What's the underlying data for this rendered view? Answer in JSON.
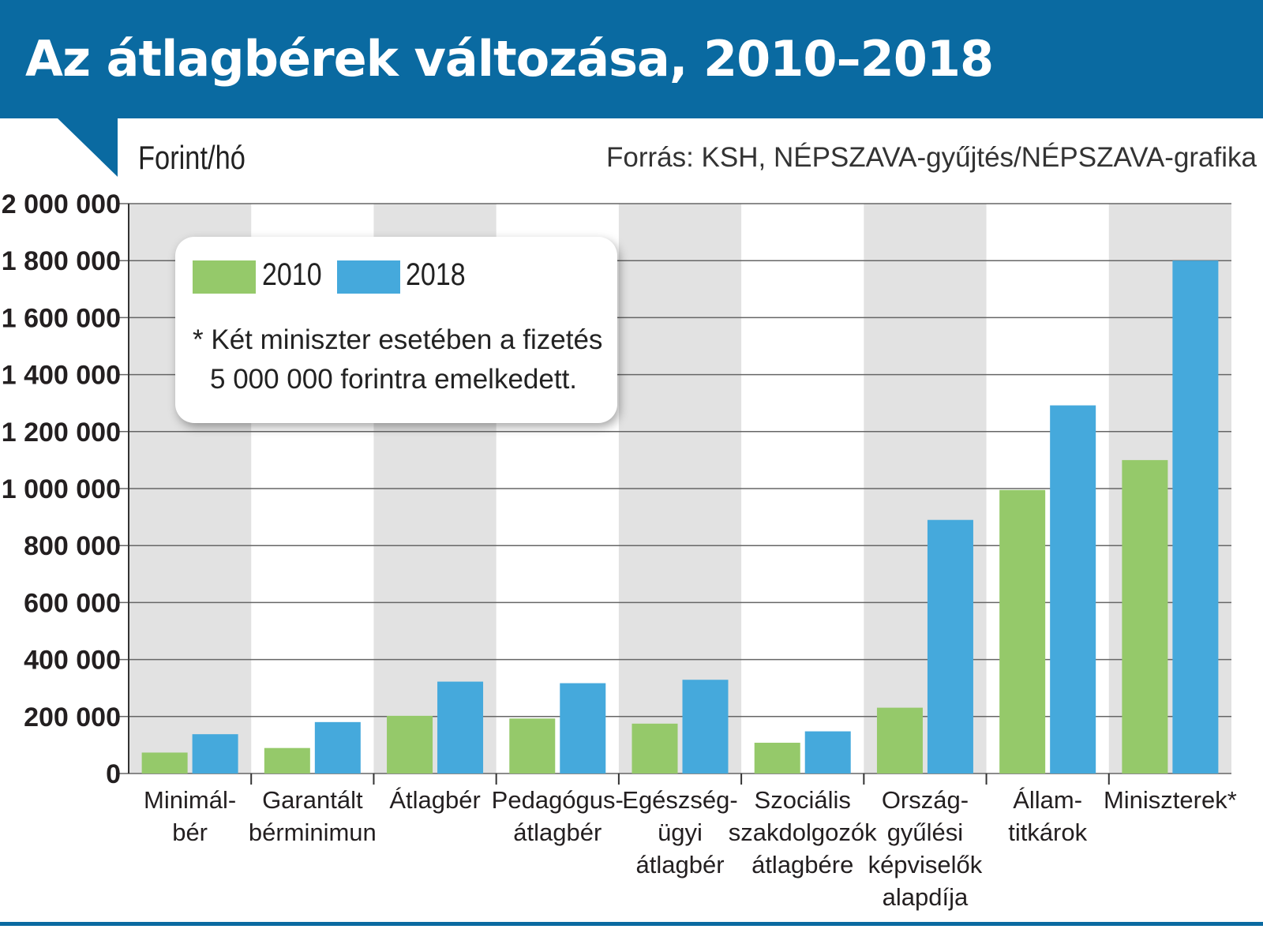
{
  "header": {
    "title": "Az átlagbérek változása, 2010–2018",
    "unit": "Forint/hó",
    "source": "Forrás: KSH, NÉPSZAVA-gyűjtés/NÉPSZAVA-grafika"
  },
  "legend": {
    "items": [
      {
        "label": "2010",
        "color": "#95c96a"
      },
      {
        "label": "2018",
        "color": "#45a9dc"
      }
    ],
    "note_line1": "* Két miniszter esetében a fizetés",
    "note_line2": "5 000 000 forintra  emelkedett."
  },
  "colors": {
    "brand": "#0a6aa1",
    "band": "#e2e2e2",
    "grid": "#666666"
  },
  "chart_data": {
    "type": "bar",
    "title": "Az átlagbérek változása, 2010–2018",
    "ylabel": "Forint/hó",
    "ylim": [
      0,
      2000000
    ],
    "yticks": [
      0,
      200000,
      400000,
      600000,
      800000,
      1000000,
      1200000,
      1400000,
      1600000,
      1800000,
      2000000
    ],
    "ytick_labels": [
      "0",
      "200 000",
      "400 000",
      "600 000",
      "800 000",
      "1 000 000",
      "1 200 000",
      "1 400 000",
      "1 600 000",
      "1 800 000",
      "2 000 000"
    ],
    "grid": true,
    "legend_position": "top-left",
    "categories": [
      [
        "Minimál-",
        "bér"
      ],
      [
        "Garantált",
        "bérminimun"
      ],
      [
        "Átlagbér"
      ],
      [
        "Pedagógus-",
        "átlagbér"
      ],
      [
        "Egészség-",
        "ügyi",
        "átlagbér"
      ],
      [
        "Szociális",
        "szakdolgozók",
        "átlagbére"
      ],
      [
        "Ország-",
        "gyűlési",
        "képviselők",
        "alapdíja"
      ],
      [
        "Állam-",
        "titkárok"
      ],
      [
        "Miniszterek*"
      ]
    ],
    "series": [
      {
        "name": "2010",
        "color": "#95c96a",
        "values": [
          73500,
          89500,
          202500,
          193000,
          175000,
          108000,
          231000,
          995000,
          1100000
        ]
      },
      {
        "name": "2018",
        "color": "#45a9dc",
        "values": [
          138000,
          180500,
          322500,
          317000,
          329000,
          148000,
          890000,
          1292000,
          1800000
        ]
      }
    ]
  }
}
